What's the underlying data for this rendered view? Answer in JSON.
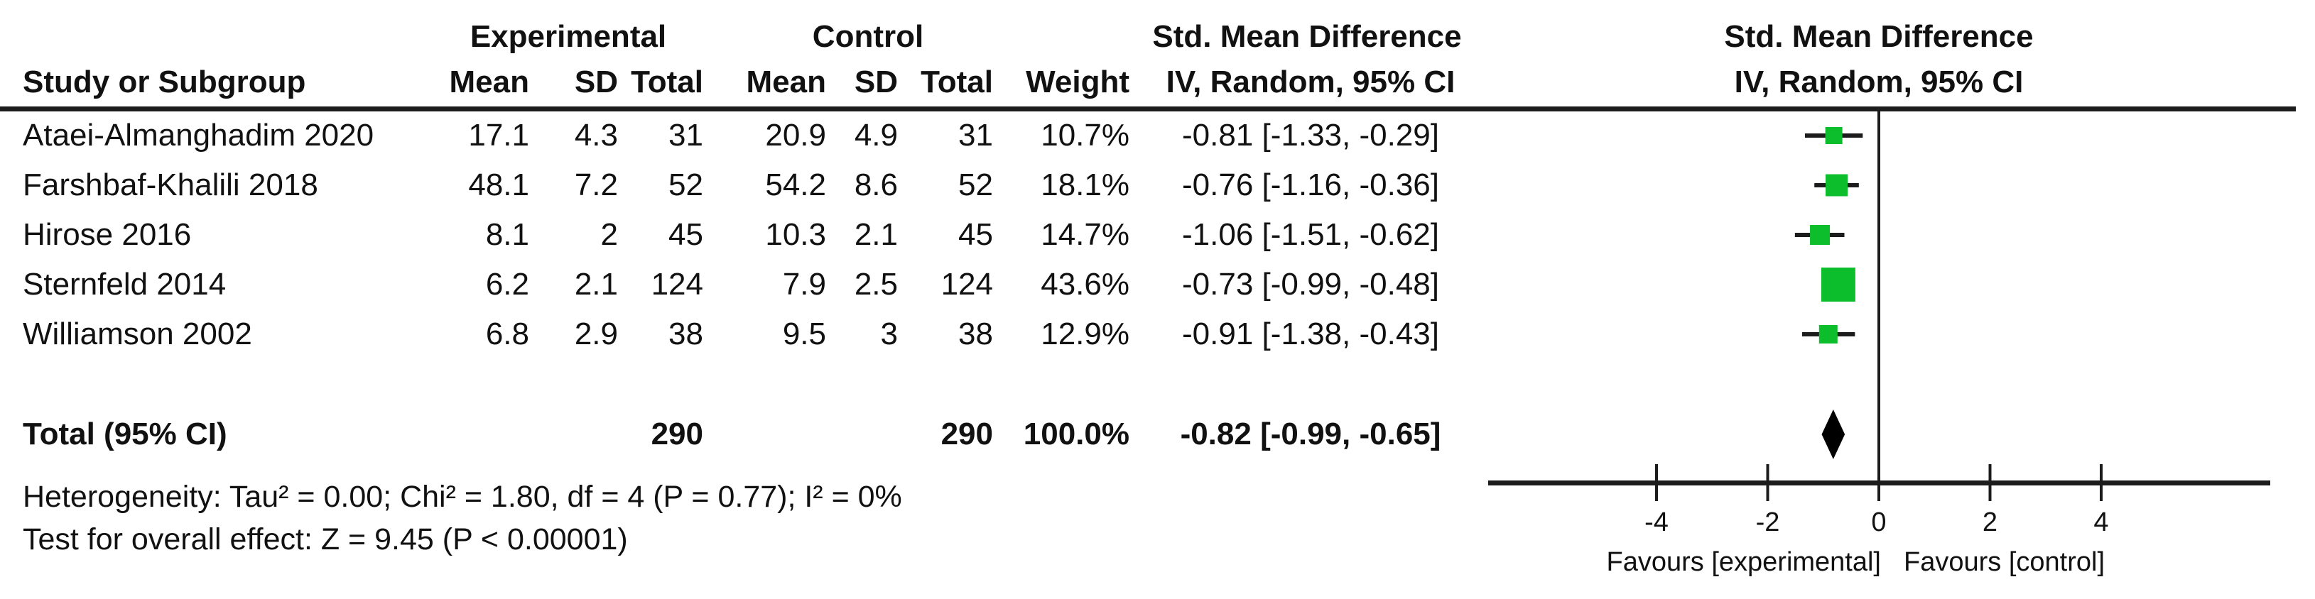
{
  "header": {
    "study_col": "Study or Subgroup",
    "experimental_group": "Experimental",
    "control_group": "Control",
    "mean": "Mean",
    "sd": "SD",
    "total": "Total",
    "weight": "Weight",
    "effect_title": "Std. Mean Difference",
    "effect_subtitle": "IV, Random, 95% CI",
    "plot_title": "Std. Mean Difference",
    "plot_subtitle": "IV, Random, 95% CI"
  },
  "studies": [
    {
      "name": "Ataei-Almanghadim 2020",
      "exp_mean": "17.1",
      "exp_sd": "4.3",
      "exp_total": "31",
      "ctl_mean": "20.9",
      "ctl_sd": "4.9",
      "ctl_total": "31",
      "weight": "10.7%",
      "ci": "-0.81 [-1.33, -0.29]",
      "est": -0.81,
      "lo": -1.33,
      "hi": -0.29,
      "weight_pct": 10.7
    },
    {
      "name": "Farshbaf-Khalili 2018",
      "exp_mean": "48.1",
      "exp_sd": "7.2",
      "exp_total": "52",
      "ctl_mean": "54.2",
      "ctl_sd": "8.6",
      "ctl_total": "52",
      "weight": "18.1%",
      "ci": "-0.76 [-1.16, -0.36]",
      "est": -0.76,
      "lo": -1.16,
      "hi": -0.36,
      "weight_pct": 18.1
    },
    {
      "name": "Hirose 2016",
      "exp_mean": "8.1",
      "exp_sd": "2",
      "exp_total": "45",
      "ctl_mean": "10.3",
      "ctl_sd": "2.1",
      "ctl_total": "45",
      "weight": "14.7%",
      "ci": "-1.06 [-1.51, -0.62]",
      "est": -1.06,
      "lo": -1.51,
      "hi": -0.62,
      "weight_pct": 14.7
    },
    {
      "name": "Sternfeld 2014",
      "exp_mean": "6.2",
      "exp_sd": "2.1",
      "exp_total": "124",
      "ctl_mean": "7.9",
      "ctl_sd": "2.5",
      "ctl_total": "124",
      "weight": "43.6%",
      "ci": "-0.73 [-0.99, -0.48]",
      "est": -0.73,
      "lo": -0.99,
      "hi": -0.48,
      "weight_pct": 43.6
    },
    {
      "name": "Williamson 2002",
      "exp_mean": "6.8",
      "exp_sd": "2.9",
      "exp_total": "38",
      "ctl_mean": "9.5",
      "ctl_sd": "3",
      "ctl_total": "38",
      "weight": "12.9%",
      "ci": "-0.91 [-1.38, -0.43]",
      "est": -0.91,
      "lo": -1.38,
      "hi": -0.43,
      "weight_pct": 12.9
    }
  ],
  "total": {
    "label": "Total (95% CI)",
    "exp_total": "290",
    "ctl_total": "290",
    "weight": "100.0%",
    "ci": "-0.82 [-0.99, -0.65]",
    "est": -0.82,
    "lo": -0.99,
    "hi": -0.65
  },
  "footnotes": {
    "heterogeneity": "Heterogeneity: Tau² = 0.00; Chi² = 1.80, df = 4 (P = 0.77); I² = 0%",
    "overall_effect": "Test for overall effect: Z = 9.45 (P < 0.00001)"
  },
  "axis": {
    "ticks": [
      -4,
      -2,
      0,
      2,
      4
    ],
    "labels": [
      "-4",
      "-2",
      "0",
      "2",
      "4"
    ],
    "favours_left": "Favours [experimental]",
    "favours_right": "Favours [control]"
  },
  "colors": {
    "marker_green": "#0cbe2c",
    "diamond_black": "#000000",
    "line_black": "#1c1c1c"
  },
  "chart_data": {
    "type": "forest",
    "title": "Std. Mean Difference",
    "model": "IV, Random, 95% CI",
    "x_ticks": [
      -4,
      -2,
      0,
      2,
      4
    ],
    "x_axis_range_drawn": [
      -7,
      7
    ],
    "categories": [
      "Ataei-Almanghadim 2020",
      "Farshbaf-Khalili 2018",
      "Hirose 2016",
      "Sternfeld 2014",
      "Williamson 2002"
    ],
    "estimates": [
      -0.81,
      -0.76,
      -1.06,
      -0.73,
      -0.91
    ],
    "ci_low": [
      -1.33,
      -1.16,
      -1.51,
      -0.99,
      -1.38
    ],
    "ci_high": [
      -0.29,
      -0.36,
      -0.62,
      -0.48,
      -0.43
    ],
    "weights_pct": [
      10.7,
      18.1,
      14.7,
      43.6,
      12.9
    ],
    "overall": {
      "label": "Total (95% CI)",
      "estimate": -0.82,
      "ci_low": -0.99,
      "ci_high": -0.65,
      "weight_pct": 100.0
    },
    "heterogeneity": {
      "tau2": 0.0,
      "chi2": 1.8,
      "df": 4,
      "p": 0.77,
      "i2_pct": 0
    },
    "overall_effect_test": {
      "z": 9.45,
      "p": "< 0.00001"
    },
    "favours_left": "Favours [experimental]",
    "favours_right": "Favours [control]"
  }
}
